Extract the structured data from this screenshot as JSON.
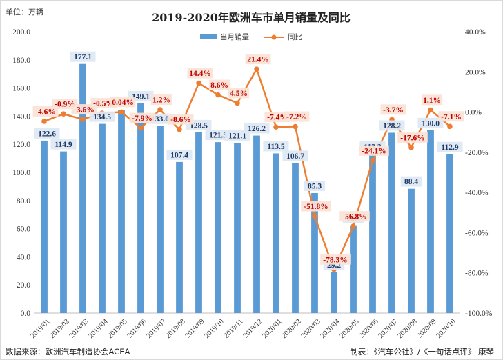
{
  "unit_label": "单位：万辆",
  "source": "数据来源：欧洲汽车制造协会ACEA",
  "credit": "制表：《汽车公社》/《一句话点评》 康琴",
  "chart_data": {
    "type": "bar",
    "title": "2019-2020年欧洲车市单月销量及同比",
    "categories": [
      "2019/01",
      "2019/02",
      "2019/03",
      "2019/04",
      "2019/05",
      "2019/06",
      "2019/07",
      "2019/08",
      "2019/09",
      "2019/10",
      "2019/11",
      "2019/12",
      "2020/01",
      "2020/02",
      "2020/03",
      "2020/04",
      "2020/05",
      "2020/06",
      "2020/07",
      "2020/08",
      "2020/09",
      "2020/10"
    ],
    "series": [
      {
        "name": "当月销量",
        "type": "bar",
        "axis": "left",
        "color": "#5b9bd5",
        "values": [
          122.6,
          114.9,
          177.1,
          134.5,
          144.6,
          149.1,
          133.0,
          107.4,
          128.5,
          121.5,
          121.1,
          126.2,
          113.5,
          106.7,
          85.3,
          29.2,
          62.4,
          113.2,
          128.2,
          88.4,
          130.0,
          112.9
        ],
        "labels": [
          "122.6",
          "114.9",
          "177.1",
          "134.5",
          "",
          "149.1",
          "133.0",
          "107.4",
          "128.5",
          "121.5",
          "121.1",
          "126.2",
          "113.5",
          "106.7",
          "85.3",
          "29.2",
          "62.4",
          "113.2",
          "128.2",
          "88.4",
          "130.0",
          "112.9"
        ]
      },
      {
        "name": "同比",
        "type": "line",
        "axis": "right",
        "color": "#ed7d31",
        "values": [
          -4.6,
          -0.9,
          -3.6,
          -0.5,
          0.04,
          -7.9,
          1.2,
          -8.6,
          14.4,
          8.6,
          4.5,
          21.4,
          -7.4,
          -7.2,
          -51.8,
          -78.3,
          -56.8,
          -24.1,
          -3.7,
          -17.6,
          1.1,
          -7.1
        ],
        "labels": [
          "-4.6%",
          "-0.9%",
          "-3.6%",
          "-0.5%",
          "0.04%",
          "-7.9%",
          "1.2%",
          "-8.6%",
          "14.4%",
          "8.6%",
          "4.5%",
          "21.4%",
          "-7.4%",
          "-7.2%",
          "-51.8%",
          "-78.3%",
          "-56.8%",
          "-24.1%",
          "-3.7%",
          "-17.6%",
          "1.1%",
          "-7.1%"
        ]
      }
    ],
    "y_left": {
      "min": 0,
      "max": 200,
      "step": 20,
      "ticks": [
        "0.0",
        "20.0",
        "40.0",
        "60.0",
        "80.0",
        "100.0",
        "120.0",
        "140.0",
        "160.0",
        "180.0",
        "200.0"
      ]
    },
    "y_right": {
      "min": -100,
      "max": 40,
      "step": 20,
      "ticks": [
        "-100.0%",
        "-80.0%",
        "-60.0%",
        "-40.0%",
        "-20.0%",
        "0.0%",
        "20.0%",
        "40.0%"
      ]
    },
    "legend": {
      "position": "top-center"
    },
    "grid": false
  }
}
